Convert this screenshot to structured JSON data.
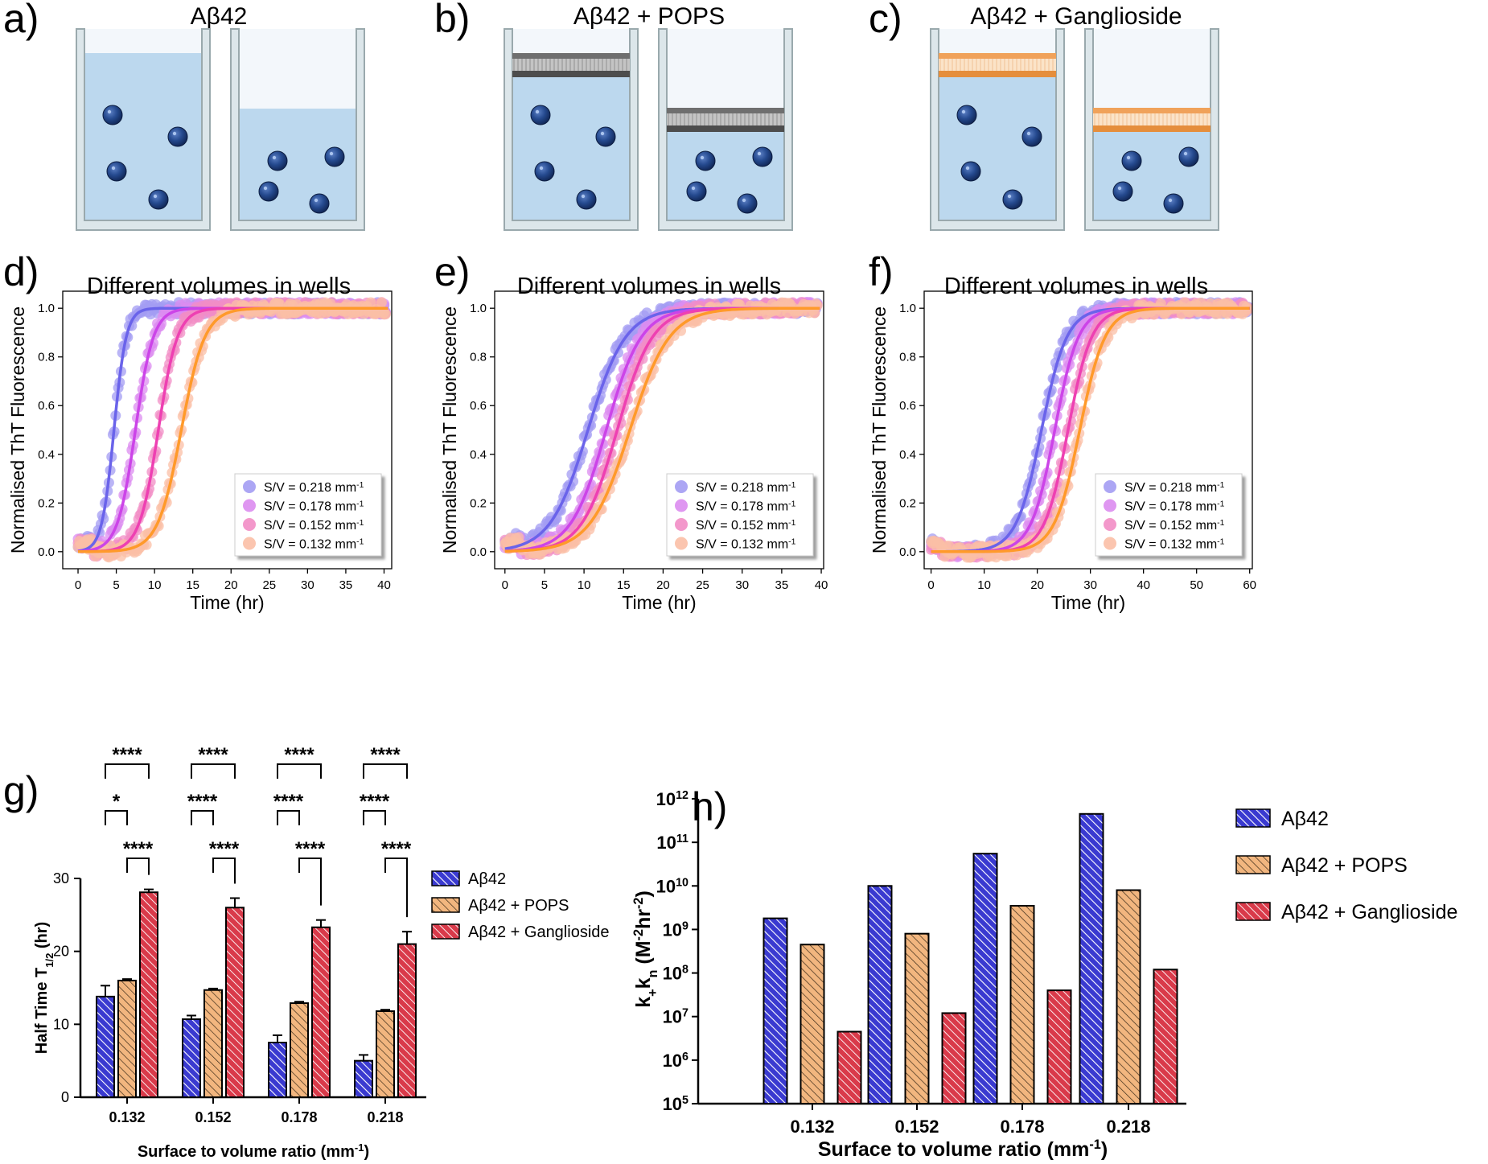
{
  "panel_labels": {
    "a": "a)",
    "b": "b)",
    "c": "c)",
    "d": "d)",
    "e": "e)",
    "f": "f)",
    "g": "g)",
    "h": "h)"
  },
  "schematics": [
    {
      "title": "Aβ42",
      "caption": "Different volumes in wells",
      "membrane": "none"
    },
    {
      "title": "Aβ42 + POPS",
      "caption": "Different volumes in wells",
      "membrane": "pops"
    },
    {
      "title": "Aβ42 + Ganglioside",
      "caption": "Different volumes in wells",
      "membrane": "ganglioside"
    }
  ],
  "colors": {
    "water": "#bcd8ee",
    "wall": "#dce6ea",
    "wall_stroke": "#9aa9ad",
    "monomer": "#1d3b78",
    "sv_0.218": "#6a63ea",
    "sv_0.178": "#cc44e8",
    "sv_0.152": "#ee40b2",
    "sv_0.132": "#ff9a2a",
    "ab42": "#3a3ad0",
    "pops": "#f2b67f",
    "ganglioside": "#d93a4a"
  },
  "chart_data": [
    {
      "id": "d",
      "type": "line",
      "xlabel": "Time (hr)",
      "ylabel": "Normalised ThT Fluorescence",
      "xlim": [
        -2,
        41
      ],
      "ylim": [
        -0.07,
        1.07
      ],
      "xticks": [
        0,
        5,
        10,
        15,
        20,
        25,
        30,
        35,
        40
      ],
      "yticks": [
        0.0,
        0.2,
        0.4,
        0.6,
        0.8,
        1.0
      ],
      "legend_position": "lower-right",
      "series": [
        {
          "name": "S/V = 0.218 mm",
          "sup": "-1",
          "t_half": 4.7,
          "k": 1.25,
          "color": "#6a63ea",
          "marker": "#a39cf3"
        },
        {
          "name": "S/V = 0.178 mm",
          "sup": "-1",
          "t_half": 7.5,
          "k": 0.85,
          "color": "#cc44e8",
          "marker": "#dc8cf0"
        },
        {
          "name": "S/V = 0.152 mm",
          "sup": "-1",
          "t_half": 10.5,
          "k": 0.8,
          "color": "#ee40b2",
          "marker": "#f28dc5"
        },
        {
          "name": "S/V = 0.132 mm",
          "sup": "-1",
          "t_half": 13.5,
          "k": 0.65,
          "color": "#ff9a2a",
          "marker": "#fbbfa6"
        }
      ]
    },
    {
      "id": "e",
      "type": "line",
      "xlabel": "Time (hr)",
      "ylabel": "Normalised ThT Fluorescence",
      "xlim": [
        -1.3,
        40.3
      ],
      "ylim": [
        -0.07,
        1.07
      ],
      "xticks": [
        0,
        5,
        10,
        15,
        20,
        25,
        30,
        35,
        40
      ],
      "yticks": [
        0.0,
        0.2,
        0.4,
        0.6,
        0.8,
        1.0
      ],
      "legend_position": "lower-right",
      "series": [
        {
          "name": "S/V = 0.218 mm",
          "sup": "-1",
          "t_half": 10.5,
          "k": 0.42,
          "color": "#6a63ea",
          "marker": "#a39cf3"
        },
        {
          "name": "S/V = 0.178 mm",
          "sup": "-1",
          "t_half": 12.8,
          "k": 0.45,
          "color": "#cc44e8",
          "marker": "#dc8cf0"
        },
        {
          "name": "S/V = 0.152 mm",
          "sup": "-1",
          "t_half": 14.2,
          "k": 0.45,
          "color": "#ee40b2",
          "marker": "#f28dc5"
        },
        {
          "name": "S/V = 0.132 mm",
          "sup": "-1",
          "t_half": 15.8,
          "k": 0.4,
          "color": "#ff9a2a",
          "marker": "#fbbfa6"
        }
      ]
    },
    {
      "id": "f",
      "type": "line",
      "xlabel": "Time (hr)",
      "ylabel": "Normalised ThT Fluorescence",
      "xlim": [
        -1.3,
        60.5
      ],
      "ylim": [
        -0.07,
        1.07
      ],
      "xticks": [
        0,
        10,
        20,
        30,
        40,
        50,
        60
      ],
      "yticks": [
        0.0,
        0.2,
        0.4,
        0.6,
        0.8,
        1.0
      ],
      "legend_position": "lower-right",
      "series": [
        {
          "name": "S/V = 0.218 mm",
          "sup": "-1",
          "t_half": 20.8,
          "k": 0.42,
          "color": "#6a63ea",
          "marker": "#a39cf3"
        },
        {
          "name": "S/V = 0.178 mm",
          "sup": "-1",
          "t_half": 23.3,
          "k": 0.45,
          "color": "#cc44e8",
          "marker": "#dc8cf0"
        },
        {
          "name": "S/V = 0.152 mm",
          "sup": "-1",
          "t_half": 25.8,
          "k": 0.45,
          "color": "#ee40b2",
          "marker": "#f28dc5"
        },
        {
          "name": "S/V = 0.132 mm",
          "sup": "-1",
          "t_half": 28.0,
          "k": 0.42,
          "color": "#ff9a2a",
          "marker": "#fbbfa6"
        }
      ]
    },
    {
      "id": "g",
      "type": "bar",
      "xlabel": "Surface to volume ratio (mm",
      "xlabel_sup": "-1",
      "xlabel_end": ")",
      "ylabel": "Half Time T",
      "ylabel_sub": "1/2",
      "ylabel_end": " (hr)",
      "ylim": [
        0,
        30
      ],
      "yticks": [
        0,
        10,
        20,
        30
      ],
      "categories": [
        "0.132",
        "0.152",
        "0.178",
        "0.218"
      ],
      "legend_position": "right",
      "series": [
        {
          "name": "Aβ42",
          "values": [
            13.8,
            10.7,
            7.5,
            5.0
          ],
          "errors": [
            1.5,
            0.5,
            1.0,
            0.8
          ],
          "color": "#3a3ad0"
        },
        {
          "name": "Aβ42 + POPS",
          "values": [
            16.0,
            14.7,
            12.9,
            11.8
          ],
          "errors": [
            0.2,
            0.2,
            0.2,
            0.2
          ],
          "color": "#f2b67f"
        },
        {
          "name": "Aβ42 + Ganglioside",
          "values": [
            28.1,
            26.0,
            23.3,
            21.0
          ],
          "errors": [
            0.4,
            1.3,
            1.0,
            1.7
          ],
          "color": "#d93a4a"
        }
      ],
      "significance": [
        {
          "pair": [
            "Aβ42",
            "Aβ42 + Ganglioside"
          ],
          "labels": [
            "****",
            "****",
            "****",
            "****"
          ]
        },
        {
          "pair": [
            "Aβ42",
            "Aβ42 + POPS"
          ],
          "labels": [
            "*",
            "****",
            "****",
            "****"
          ]
        },
        {
          "pair": [
            "Aβ42 + POPS",
            "Aβ42 + Ganglioside"
          ],
          "labels": [
            "****",
            "****",
            "****",
            "****"
          ]
        }
      ]
    },
    {
      "id": "h",
      "type": "bar",
      "scale": "log",
      "xlabel": "Surface to volume ratio (mm",
      "xlabel_sup": "-1",
      "xlabel_end": ")",
      "ylabel": "k+kn (M-2hr-2)",
      "ylim_exp": [
        5,
        12
      ],
      "ytick_exps": [
        5,
        6,
        7,
        8,
        9,
        10,
        11,
        12
      ],
      "categories": [
        "0.132",
        "0.152",
        "0.178",
        "0.218"
      ],
      "legend_position": "top-right",
      "series": [
        {
          "name": "Aβ42",
          "values": [
            1800000000.0,
            10000000000.0,
            55000000000.0,
            450000000000.0
          ],
          "color": "#3a3ad0"
        },
        {
          "name": "Aβ42 + POPS",
          "values": [
            450000000.0,
            800000000.0,
            3500000000.0,
            8000000000.0
          ],
          "color": "#f2b67f"
        },
        {
          "name": "Aβ42 + Ganglioside",
          "values": [
            4500000.0,
            12000000.0,
            40000000.0,
            120000000.0
          ],
          "color": "#d93a4a"
        }
      ]
    }
  ]
}
